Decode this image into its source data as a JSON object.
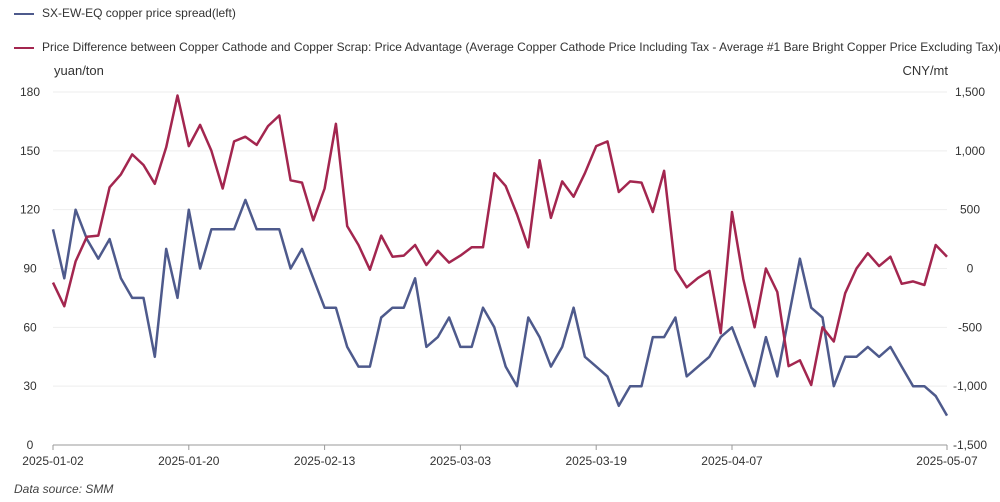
{
  "legend": {
    "left_series": "SX-EW-EQ copper price spread(left)",
    "right_series": "Price Difference between Copper Cathode and Copper Scrap: Price Advantage (Average Copper Cathode Price Including Tax - Average #1 Bare Bright Copper Price Excluding Tax)(right)"
  },
  "units": {
    "left": "yuan/ton",
    "right": "CNY/mt"
  },
  "source": "Data source:  SMM",
  "colors": {
    "left_series": "#4e5a8c",
    "right_series": "#a3264f",
    "axis": "#999999"
  },
  "chart_data": {
    "type": "line",
    "x_tick_labels": [
      "2025-01-02",
      "2025-01-20",
      "2025-02-13",
      "2025-03-03",
      "2025-03-19",
      "2025-04-07",
      "2025-05-07"
    ],
    "x_tick_indices": [
      0,
      12,
      24,
      36,
      48,
      60,
      79
    ],
    "y_left": {
      "ticks": [
        0,
        30,
        60,
        90,
        120,
        150,
        180
      ],
      "range": [
        0,
        180
      ]
    },
    "y_right": {
      "ticks": [
        "-1,500",
        "-1,000",
        "-500",
        "0",
        "500",
        "1,000",
        "1,500"
      ],
      "tick_values": [
        -1500,
        -1000,
        -500,
        0,
        500,
        1000,
        1500
      ],
      "range": [
        -1500,
        1500
      ]
    },
    "grid": true,
    "series": [
      {
        "name": "SX-EW-EQ copper price spread(left)",
        "axis": "left",
        "values": [
          110,
          85,
          120,
          105,
          95,
          105,
          85,
          75,
          75,
          45,
          100,
          75,
          120,
          90,
          110,
          110,
          110,
          125,
          110,
          110,
          110,
          90,
          100,
          85,
          70,
          70,
          50,
          40,
          40,
          65,
          70,
          70,
          85,
          50,
          55,
          65,
          50,
          50,
          70,
          60,
          40,
          30,
          65,
          55,
          40,
          50,
          70,
          45,
          40,
          35,
          20,
          30,
          30,
          55,
          55,
          65,
          35,
          40,
          45,
          55,
          60,
          45,
          30,
          55,
          35,
          65,
          95,
          70,
          65,
          30,
          45,
          45,
          50,
          45,
          50,
          40,
          30,
          30,
          25,
          15
        ]
      },
      {
        "name": "Price Difference between Copper Cathode and Copper Scrap: Price Advantage (Average Copper Cathode Price Including Tax - Average #1 Bare Bright Copper Price Excluding Tax)(right)",
        "axis": "right",
        "values": [
          -120,
          -320,
          60,
          270,
          280,
          690,
          800,
          970,
          880,
          720,
          1030,
          1470,
          1040,
          1220,
          1000,
          680,
          1080,
          1120,
          1050,
          1210,
          1300,
          750,
          730,
          410,
          680,
          1230,
          360,
          200,
          -10,
          280,
          100,
          110,
          200,
          30,
          150,
          50,
          110,
          180,
          180,
          810,
          700,
          460,
          180,
          920,
          430,
          740,
          610,
          810,
          1040,
          1080,
          650,
          740,
          730,
          480,
          830,
          -10,
          -160,
          -80,
          -20,
          -550,
          480,
          -90,
          -500,
          0,
          -200,
          -830,
          -780,
          -990,
          -500,
          -620,
          -210,
          0,
          130,
          20,
          100,
          -130,
          -110,
          -140,
          200,
          100
        ]
      }
    ]
  }
}
